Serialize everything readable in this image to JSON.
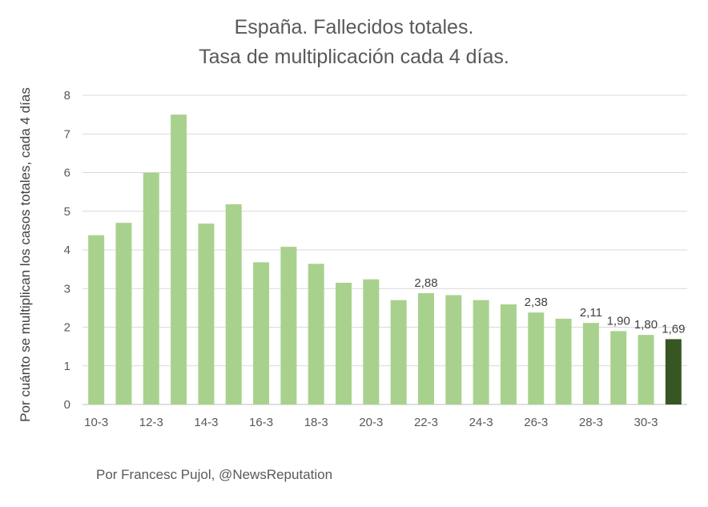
{
  "chart_data": {
    "type": "bar",
    "title": "España. Fallecidos totales.",
    "subtitle": "Tasa de multiplicación cada 4 días.",
    "xlabel": "",
    "ylabel": "Por cuánto se multiplican los casos totales, cada 4 días",
    "ylim": [
      0,
      8
    ],
    "yticks": [
      "0",
      "1",
      "2",
      "3",
      "4",
      "5",
      "6",
      "7",
      "8"
    ],
    "grid": true,
    "categories": [
      "10-3",
      "11-3",
      "12-3",
      "13-3",
      "14-3",
      "15-3",
      "16-3",
      "17-3",
      "18-3",
      "19-3",
      "20-3",
      "21-3",
      "22-3",
      "23-3",
      "24-3",
      "25-3",
      "26-3",
      "27-3",
      "28-3",
      "29-3",
      "30-3",
      "31-3"
    ],
    "xtick_labels": [
      "10-3",
      "",
      "12-3",
      "",
      "14-3",
      "",
      "16-3",
      "",
      "18-3",
      "",
      "20-3",
      "",
      "22-3",
      "",
      "24-3",
      "",
      "26-3",
      "",
      "28-3",
      "",
      "30-3",
      ""
    ],
    "values": [
      4.38,
      4.7,
      6.0,
      7.5,
      4.68,
      5.18,
      3.68,
      4.08,
      3.64,
      3.15,
      3.24,
      2.7,
      2.88,
      2.83,
      2.7,
      2.59,
      2.38,
      2.22,
      2.11,
      1.9,
      1.8,
      1.69
    ],
    "data_labels": [
      "",
      "",
      "",
      "",
      "",
      "",
      "",
      "",
      "",
      "",
      "",
      "",
      "2,88",
      "",
      "",
      "",
      "2,38",
      "",
      "2,11",
      "1,90",
      "1,80",
      "1,69"
    ],
    "colors": {
      "bar": "#a9d18e",
      "highlight_bar": "#375623",
      "grid": "#d9d9d9",
      "axis": "#bfbfbf",
      "text": "#595959"
    },
    "highlight_index": 21
  },
  "footer": "Por Francesc Pujol, @NewsReputation"
}
